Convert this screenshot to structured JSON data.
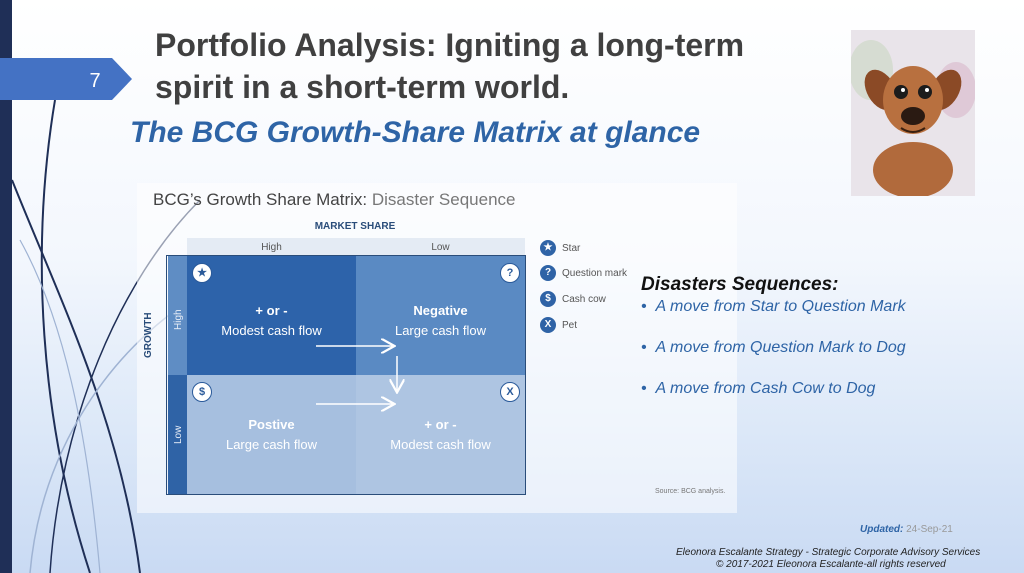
{
  "slide": {
    "number": "7",
    "title": "Portfolio Analysis: Igniting a long-term spirit in a short-term world.",
    "subtitle": "The BCG Growth-Share Matrix at glance"
  },
  "matrix": {
    "title_main": "BCG’s Growth Share Matrix: ",
    "title_light": "Disaster Sequence",
    "x_axis_label": "MARKET SHARE",
    "y_axis_label": "GROWTH",
    "col_labels": [
      "High",
      "Low"
    ],
    "row_labels": [
      "High",
      "Low"
    ],
    "quadrants": [
      {
        "icon": "★",
        "icon_name": "star-icon",
        "title": "+ or -",
        "subtitle": "Modest cash flow",
        "color": "#2d63aa"
      },
      {
        "icon": "?",
        "icon_name": "question-mark-icon",
        "title": "Negative",
        "subtitle": "Large cash flow",
        "color": "#5a8ac3"
      },
      {
        "icon": "$",
        "icon_name": "cash-cow-icon",
        "title": "Postive",
        "subtitle": "Large cash flow",
        "color": "#a6bfdf"
      },
      {
        "icon": "X",
        "icon_name": "pet-icon",
        "title": "+ or -",
        "subtitle": "Modest cash flow",
        "color": "#aec5e2"
      }
    ],
    "legend": [
      {
        "icon": "★",
        "label": "Star"
      },
      {
        "icon": "?",
        "label": "Question mark"
      },
      {
        "icon": "$",
        "label": "Cash cow"
      },
      {
        "icon": "X",
        "label": "Pet"
      }
    ],
    "source": "Source: BCG analysis."
  },
  "disasters": {
    "heading": "Disasters Sequences:",
    "items": [
      "A move from Star to Question Mark",
      "A move from Question Mark to Dog",
      "A move from Cash Cow to Dog"
    ]
  },
  "updated": {
    "label": "Updated:",
    "date": "24-Sep-21"
  },
  "footer": {
    "line1": "Eleonora Escalante Strategy - Strategic Corporate Advisory Services",
    "line2": "© 2017-2021  Eleonora Escalante-all rights reserved"
  },
  "colors": {
    "accent": "#2e64a6",
    "dark_navy": "#1f2f57"
  }
}
